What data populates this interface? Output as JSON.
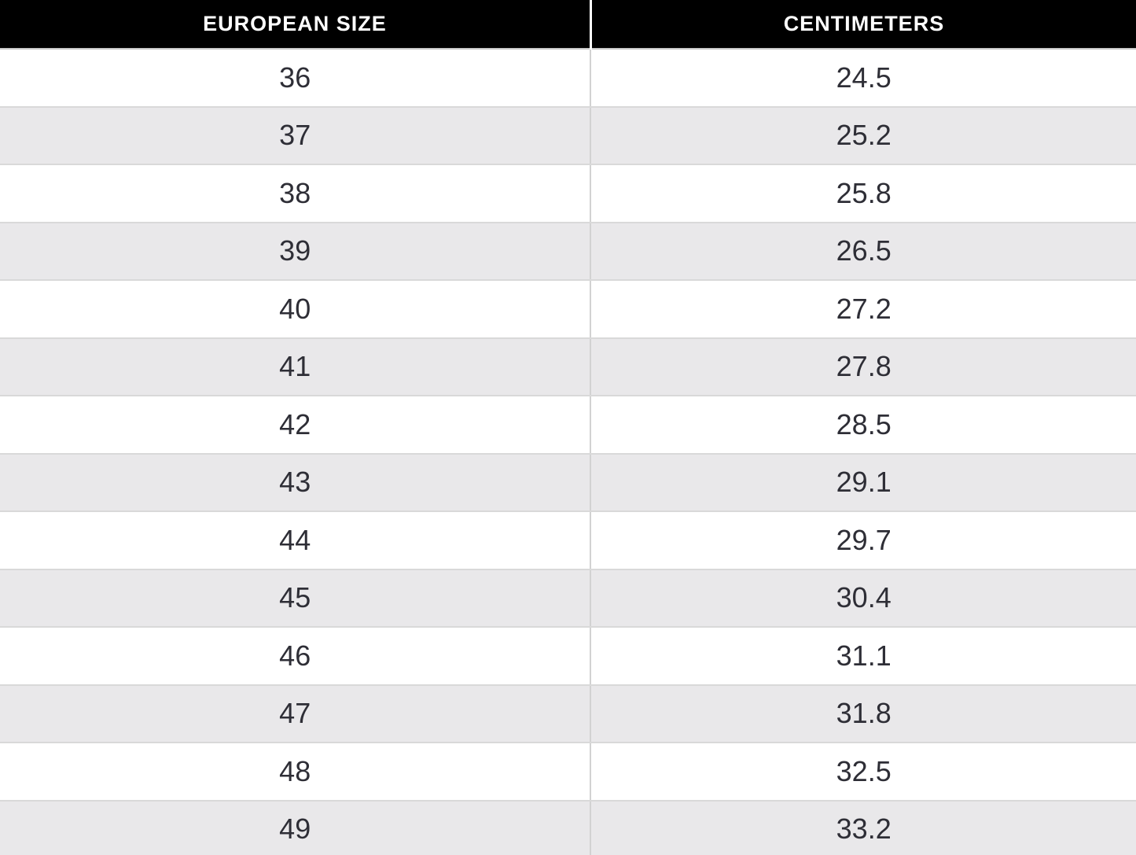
{
  "table": {
    "headers": [
      "EUROPEAN SIZE",
      "CENTIMETERS"
    ],
    "rows": [
      {
        "european_size": "36",
        "centimeters": "24.5"
      },
      {
        "european_size": "37",
        "centimeters": "25.2"
      },
      {
        "european_size": "38",
        "centimeters": "25.8"
      },
      {
        "european_size": "39",
        "centimeters": "26.5"
      },
      {
        "european_size": "40",
        "centimeters": "27.2"
      },
      {
        "european_size": "41",
        "centimeters": "27.8"
      },
      {
        "european_size": "42",
        "centimeters": "28.5"
      },
      {
        "european_size": "43",
        "centimeters": "29.1"
      },
      {
        "european_size": "44",
        "centimeters": "29.7"
      },
      {
        "european_size": "45",
        "centimeters": "30.4"
      },
      {
        "european_size": "46",
        "centimeters": "31.1"
      },
      {
        "european_size": "47",
        "centimeters": "31.8"
      },
      {
        "european_size": "48",
        "centimeters": "32.5"
      },
      {
        "european_size": "49",
        "centimeters": "33.2"
      }
    ]
  },
  "colors": {
    "header_bg": "#000000",
    "header_text": "#ffffff",
    "row_bg": "#ffffff",
    "row_alt_bg": "#e9e8ea",
    "body_text": "#2e2e36",
    "row_border": "#d9d9d9",
    "column_divider": "#d2d2d2",
    "header_divider": "#ffffff"
  },
  "chart_data": {
    "type": "table",
    "columns": [
      "EUROPEAN SIZE",
      "CENTIMETERS"
    ],
    "rows": [
      [
        36,
        24.5
      ],
      [
        37,
        25.2
      ],
      [
        38,
        25.8
      ],
      [
        39,
        26.5
      ],
      [
        40,
        27.2
      ],
      [
        41,
        27.8
      ],
      [
        42,
        28.5
      ],
      [
        43,
        29.1
      ],
      [
        44,
        29.7
      ],
      [
        45,
        30.4
      ],
      [
        46,
        31.1
      ],
      [
        47,
        31.8
      ],
      [
        48,
        32.5
      ],
      [
        49,
        33.2
      ]
    ],
    "title": "",
    "layout": {
      "striped": true,
      "header_style": "black-on-white",
      "alignment": "center"
    }
  }
}
